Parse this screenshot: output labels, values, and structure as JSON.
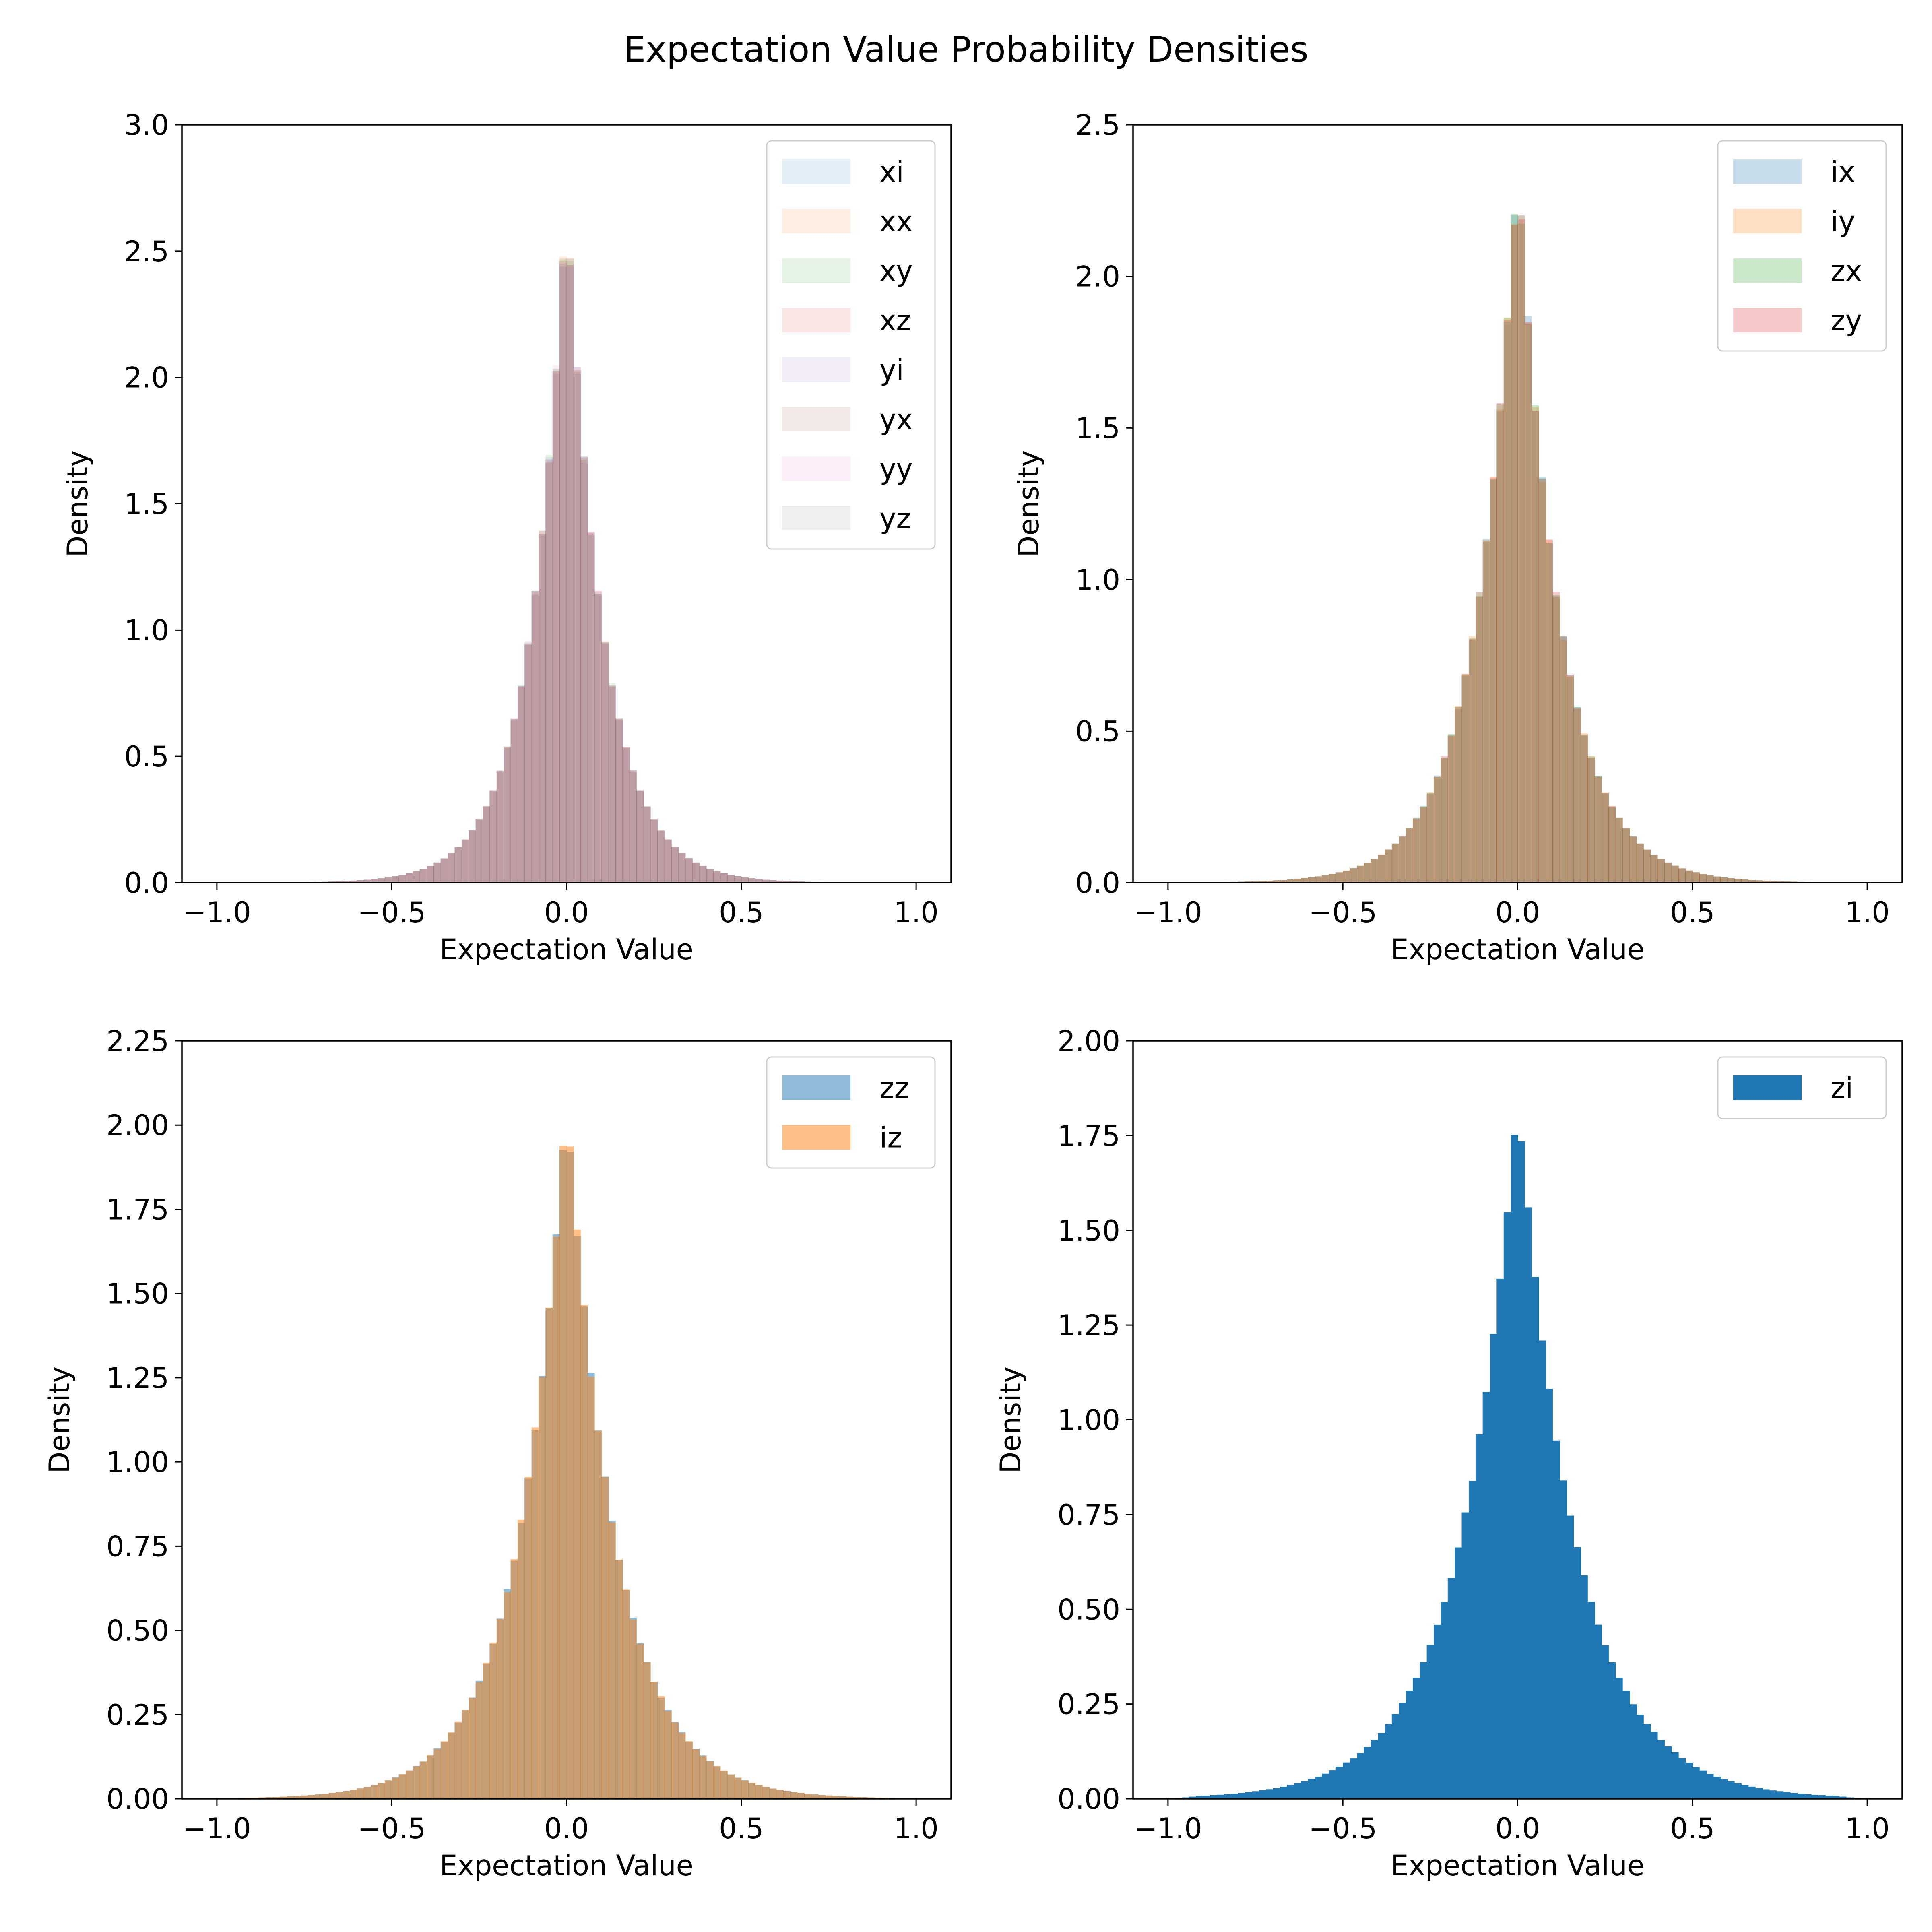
{
  "figure": {
    "title": "Expectation Value Probability Densities"
  },
  "chart_data": [
    {
      "type": "histogram",
      "xlabel": "Expectation Value",
      "ylabel": "Density",
      "xlim": [
        -1.1,
        1.1
      ],
      "ylim": [
        0,
        3.0
      ],
      "xticks": [
        -1.0,
        -0.5,
        0.0,
        0.5,
        1.0
      ],
      "xtick_labels": [
        "−1.0",
        "−0.5",
        "0.0",
        "0.5",
        "1.0"
      ],
      "yticks": [
        0,
        0.5,
        1.0,
        1.5,
        2.0,
        2.5,
        3.0
      ],
      "ytick_labels": [
        "0.0",
        "0.5",
        "1.0",
        "1.5",
        "2.0",
        "2.5",
        "3.0"
      ],
      "legend_position": "top-right",
      "alpha": 0.12,
      "bins": {
        "x_min": -1.0,
        "x_max": 1.0,
        "count": 100
      },
      "distribution_shape": {
        "peak_density": 2.7,
        "center": 0.0,
        "width": 0.105,
        "shape": "laplace-like"
      },
      "series": [
        {
          "name": "xi",
          "color": "#1f77b4"
        },
        {
          "name": "xx",
          "color": "#ff7f0e"
        },
        {
          "name": "xy",
          "color": "#2ca02c"
        },
        {
          "name": "xz",
          "color": "#d62728"
        },
        {
          "name": "yi",
          "color": "#9467bd"
        },
        {
          "name": "yx",
          "color": "#8c564b"
        },
        {
          "name": "yy",
          "color": "#e377c2"
        },
        {
          "name": "yz",
          "color": "#7f7f7f"
        }
      ]
    },
    {
      "type": "histogram",
      "xlabel": "Expectation Value",
      "ylabel": "Density",
      "xlim": [
        -1.1,
        1.1
      ],
      "ylim": [
        0,
        2.5
      ],
      "xticks": [
        -1.0,
        -0.5,
        0.0,
        0.5,
        1.0
      ],
      "xtick_labels": [
        "−1.0",
        "−0.5",
        "0.0",
        "0.5",
        "1.0"
      ],
      "yticks": [
        0,
        0.5,
        1.0,
        1.5,
        2.0,
        2.5
      ],
      "ytick_labels": [
        "0.0",
        "0.5",
        "1.0",
        "1.5",
        "2.0",
        "2.5"
      ],
      "legend_position": "top-right",
      "alpha": 0.25,
      "bins": {
        "x_min": -1.0,
        "x_max": 1.0,
        "count": 100
      },
      "distribution_shape": {
        "peak_density": 2.38,
        "center": 0.0,
        "width": 0.12,
        "shape": "laplace-like"
      },
      "series": [
        {
          "name": "ix",
          "color": "#1f77b4"
        },
        {
          "name": "iy",
          "color": "#ff7f0e"
        },
        {
          "name": "zx",
          "color": "#2ca02c"
        },
        {
          "name": "zy",
          "color": "#d62728"
        }
      ]
    },
    {
      "type": "histogram",
      "xlabel": "Expectation Value",
      "ylabel": "Density",
      "xlim": [
        -1.1,
        1.1
      ],
      "ylim": [
        0,
        2.25
      ],
      "xticks": [
        -1.0,
        -0.5,
        0.0,
        0.5,
        1.0
      ],
      "xtick_labels": [
        "−1.0",
        "−0.5",
        "0.0",
        "0.5",
        "1.0"
      ],
      "yticks": [
        0,
        0.25,
        0.5,
        0.75,
        1.0,
        1.25,
        1.5,
        1.75,
        2.0,
        2.25
      ],
      "ytick_labels": [
        "0.00",
        "0.25",
        "0.50",
        "0.75",
        "1.00",
        "1.25",
        "1.50",
        "1.75",
        "2.00",
        "2.25"
      ],
      "legend_position": "top-right",
      "alpha": 0.5,
      "bins": {
        "x_min": -1.0,
        "x_max": 1.0,
        "count": 100
      },
      "distribution_shape": {
        "peak_density": 2.08,
        "center": 0.0,
        "width": 0.14,
        "shape": "laplace-like"
      },
      "series": [
        {
          "name": "zz",
          "color": "#1f77b4"
        },
        {
          "name": "iz",
          "color": "#ff7f0e"
        }
      ]
    },
    {
      "type": "histogram",
      "xlabel": "Expectation Value",
      "ylabel": "Density",
      "xlim": [
        -1.1,
        1.1
      ],
      "ylim": [
        0,
        2.0
      ],
      "xticks": [
        -1.0,
        -0.5,
        0.0,
        0.5,
        1.0
      ],
      "xtick_labels": [
        "−1.0",
        "−0.5",
        "0.0",
        "0.5",
        "1.0"
      ],
      "yticks": [
        0,
        0.25,
        0.5,
        0.75,
        1.0,
        1.25,
        1.5,
        1.75,
        2.0
      ],
      "ytick_labels": [
        "0.00",
        "0.25",
        "0.50",
        "0.75",
        "1.00",
        "1.25",
        "1.50",
        "1.75",
        "2.00"
      ],
      "legend_position": "top-right",
      "alpha": 1.0,
      "bins": {
        "x_min": -1.0,
        "x_max": 1.0,
        "count": 100
      },
      "distribution_shape": {
        "peak_density": 1.86,
        "center": 0.0,
        "width": 0.165,
        "shape": "laplace-like"
      },
      "series": [
        {
          "name": "zi",
          "color": "#1f77b4"
        }
      ]
    }
  ]
}
